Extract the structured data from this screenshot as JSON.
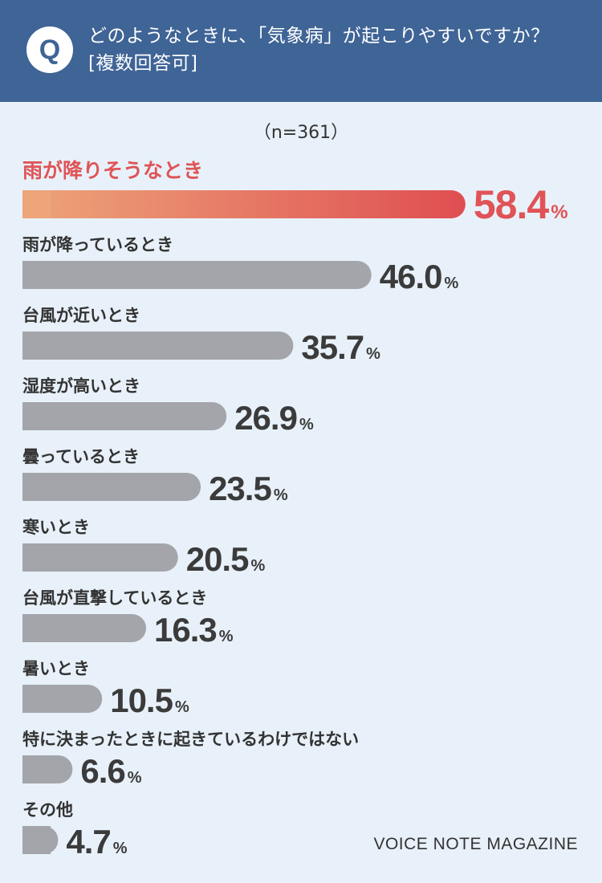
{
  "header": {
    "badge": "Q",
    "question_line1": "どのようなときに、「気象病」が起こりやすいですか？",
    "question_line2": "[複数回答可]"
  },
  "note": "（n=361）",
  "footer": "VOICE NOTE MAGAZINE",
  "colors": {
    "header_bg": "#3f6496",
    "background": "#e8f1f9",
    "bar_gray": "#a3a5aa",
    "highlight_start": "#eda579",
    "highlight_end": "#df4e52",
    "highlight_text": "#e05356"
  },
  "chart_data": {
    "type": "bar",
    "orientation": "horizontal",
    "unit": "%",
    "categories": [
      "雨が降りそうなとき",
      "雨が降っているとき",
      "台風が近いとき",
      "湿度が高いとき",
      "曇っているとき",
      "寒いとき",
      "台風が直撃しているとき",
      "暑いとき",
      "特に決まったときに起きているわけではない",
      "その他"
    ],
    "values": [
      58.4,
      46.0,
      35.7,
      26.9,
      23.5,
      20.5,
      16.3,
      10.5,
      6.6,
      4.7
    ],
    "value_labels": [
      "58.4",
      "46.0",
      "35.7",
      "26.9",
      "23.5",
      "20.5",
      "16.3",
      "10.5",
      "6.6",
      "4.7"
    ],
    "highlight_index": 0,
    "title": "",
    "xlabel": "",
    "ylabel": ""
  }
}
